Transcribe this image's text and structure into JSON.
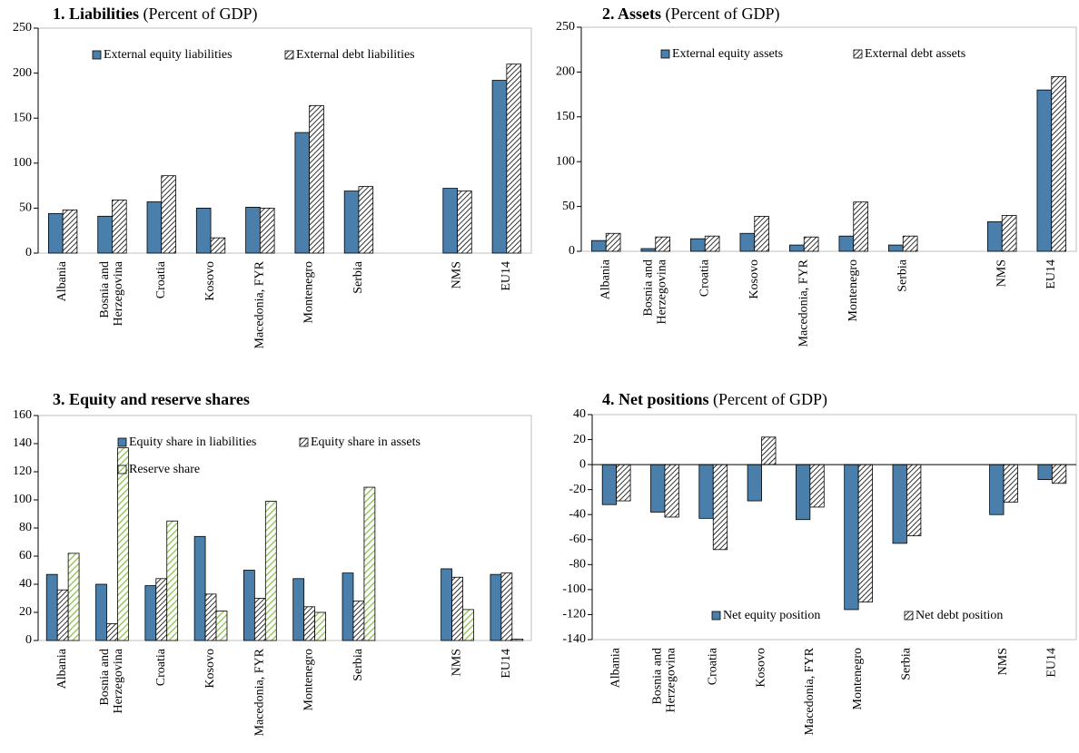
{
  "chart_data": [
    {
      "type": "bar",
      "title": "1. Liabilities",
      "subtitle": "(Percent of GDP)",
      "categories": [
        "Albania",
        "Bosnia and Herzegovina",
        "Croatia",
        "Kosovo",
        "Macedonia, FYR",
        "Montenegro",
        "Serbia",
        null,
        "NMS",
        "EU14"
      ],
      "series": [
        {
          "name": "External equity liabilities",
          "color": "#4a7fab",
          "values": [
            44,
            41,
            57,
            50,
            51,
            134,
            69,
            null,
            72,
            192
          ]
        },
        {
          "name": "External debt liabilities",
          "color": "#000000",
          "pattern": "hatch",
          "values": [
            48,
            59,
            86,
            17,
            50,
            164,
            74,
            null,
            69,
            210
          ]
        }
      ],
      "ylim": [
        0,
        250
      ],
      "yticks": [
        0,
        50,
        100,
        150,
        200,
        250
      ],
      "legend": "upper left"
    },
    {
      "type": "bar",
      "title": "2. Assets",
      "subtitle": "(Percent of GDP)",
      "categories": [
        "Albania",
        "Bosnia and Herzegovina",
        "Croatia",
        "Kosovo",
        "Macedonia, FYR",
        "Montenegro",
        "Serbia",
        null,
        "NMS",
        "EU14"
      ],
      "series": [
        {
          "name": "External equity assets",
          "color": "#4a7fab",
          "values": [
            12,
            3,
            14,
            20,
            7,
            17,
            7,
            null,
            33,
            180
          ]
        },
        {
          "name": "External debt assets",
          "color": "#000000",
          "pattern": "hatch",
          "values": [
            20,
            16,
            17,
            39,
            16,
            55,
            17,
            null,
            40,
            195
          ]
        }
      ],
      "ylim": [
        0,
        250
      ],
      "yticks": [
        0,
        50,
        100,
        150,
        200,
        250
      ],
      "legend": "upper center"
    },
    {
      "type": "bar",
      "title": "3. Equity and reserve shares",
      "categories": [
        "Albania",
        "Bosnia and Herzegovina",
        "Croatia",
        "Kosovo",
        "Macedonia, FYR",
        "Montenegro",
        "Serbia",
        null,
        "NMS",
        "EU14"
      ],
      "series": [
        {
          "name": "Equity share in liabilities",
          "color": "#4a7fab",
          "values": [
            47,
            40,
            39,
            74,
            50,
            44,
            48,
            null,
            51,
            47
          ]
        },
        {
          "name": "Equity share in assets",
          "color": "#000000",
          "pattern": "hatch",
          "values": [
            36,
            12,
            44,
            33,
            30,
            24,
            28,
            null,
            45,
            48
          ]
        },
        {
          "name": "Reserve share",
          "color": "#8fbf4f",
          "pattern": "hatch",
          "values": [
            62,
            137,
            85,
            21,
            99,
            20,
            109,
            null,
            22,
            1
          ]
        }
      ],
      "ylim": [
        0,
        160
      ],
      "yticks": [
        0,
        20,
        40,
        60,
        80,
        100,
        120,
        140,
        160
      ],
      "legend": "upper center"
    },
    {
      "type": "bar",
      "title": "4. Net positions",
      "subtitle": "(Percent of GDP)",
      "categories": [
        "Albania",
        "Bosnia and Herzegovina",
        "Croatia",
        "Kosovo",
        "Macedonia, FYR",
        "Montenegro",
        "Serbia",
        null,
        "NMS",
        "EU14"
      ],
      "series": [
        {
          "name": "Net equity position",
          "color": "#4a7fab",
          "values": [
            -32,
            -38,
            -43,
            -29,
            -44,
            -116,
            -63,
            null,
            -40,
            -12
          ]
        },
        {
          "name": "Net debt position",
          "color": "#000000",
          "pattern": "hatch",
          "values": [
            -29,
            -42,
            -68,
            22,
            -34,
            -110,
            -57,
            null,
            -30,
            -15
          ]
        }
      ],
      "ylim": [
        -140,
        40
      ],
      "yticks": [
        -140,
        -120,
        -100,
        -80,
        -60,
        -40,
        -20,
        0,
        20,
        40
      ],
      "legend": "lower center"
    }
  ]
}
